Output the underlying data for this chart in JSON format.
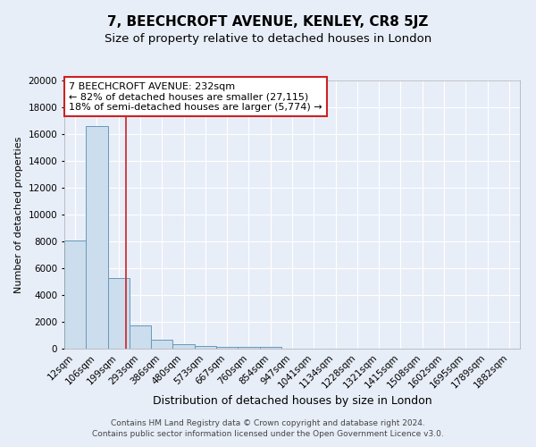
{
  "title": "7, BEECHCROFT AVENUE, KENLEY, CR8 5JZ",
  "subtitle": "Size of property relative to detached houses in London",
  "xlabel": "Distribution of detached houses by size in London",
  "ylabel": "Number of detached properties",
  "categories": [
    "12sqm",
    "106sqm",
    "199sqm",
    "293sqm",
    "386sqm",
    "480sqm",
    "573sqm",
    "667sqm",
    "760sqm",
    "854sqm",
    "947sqm",
    "1041sqm",
    "1134sqm",
    "1228sqm",
    "1321sqm",
    "1415sqm",
    "1508sqm",
    "1602sqm",
    "1695sqm",
    "1789sqm",
    "1882sqm"
  ],
  "bar_heights": [
    8100,
    16600,
    5300,
    1750,
    700,
    350,
    210,
    160,
    155,
    110,
    0,
    0,
    0,
    0,
    0,
    0,
    0,
    0,
    0,
    0,
    0
  ],
  "bar_color": "#ccdded",
  "bar_edge_color": "#6699bb",
  "bar_edge_width": 0.7,
  "vline_color": "#cc2222",
  "annotation_text": "7 BEECHCROFT AVENUE: 232sqm\n← 82% of detached houses are smaller (27,115)\n18% of semi-detached houses are larger (5,774) →",
  "annotation_box_color": "#ffffff",
  "annotation_box_edge": "#cc2222",
  "ylim": [
    0,
    20000
  ],
  "yticks": [
    0,
    2000,
    4000,
    6000,
    8000,
    10000,
    12000,
    14000,
    16000,
    18000,
    20000
  ],
  "bg_color": "#e8eef8",
  "plot_bg_color": "#e8eef8",
  "grid_color": "#ffffff",
  "footer": "Contains HM Land Registry data © Crown copyright and database right 2024.\nContains public sector information licensed under the Open Government Licence v3.0.",
  "title_fontsize": 11,
  "subtitle_fontsize": 9.5,
  "xlabel_fontsize": 9,
  "ylabel_fontsize": 8,
  "tick_fontsize": 7.5,
  "annot_fontsize": 8,
  "footer_fontsize": 6.5
}
